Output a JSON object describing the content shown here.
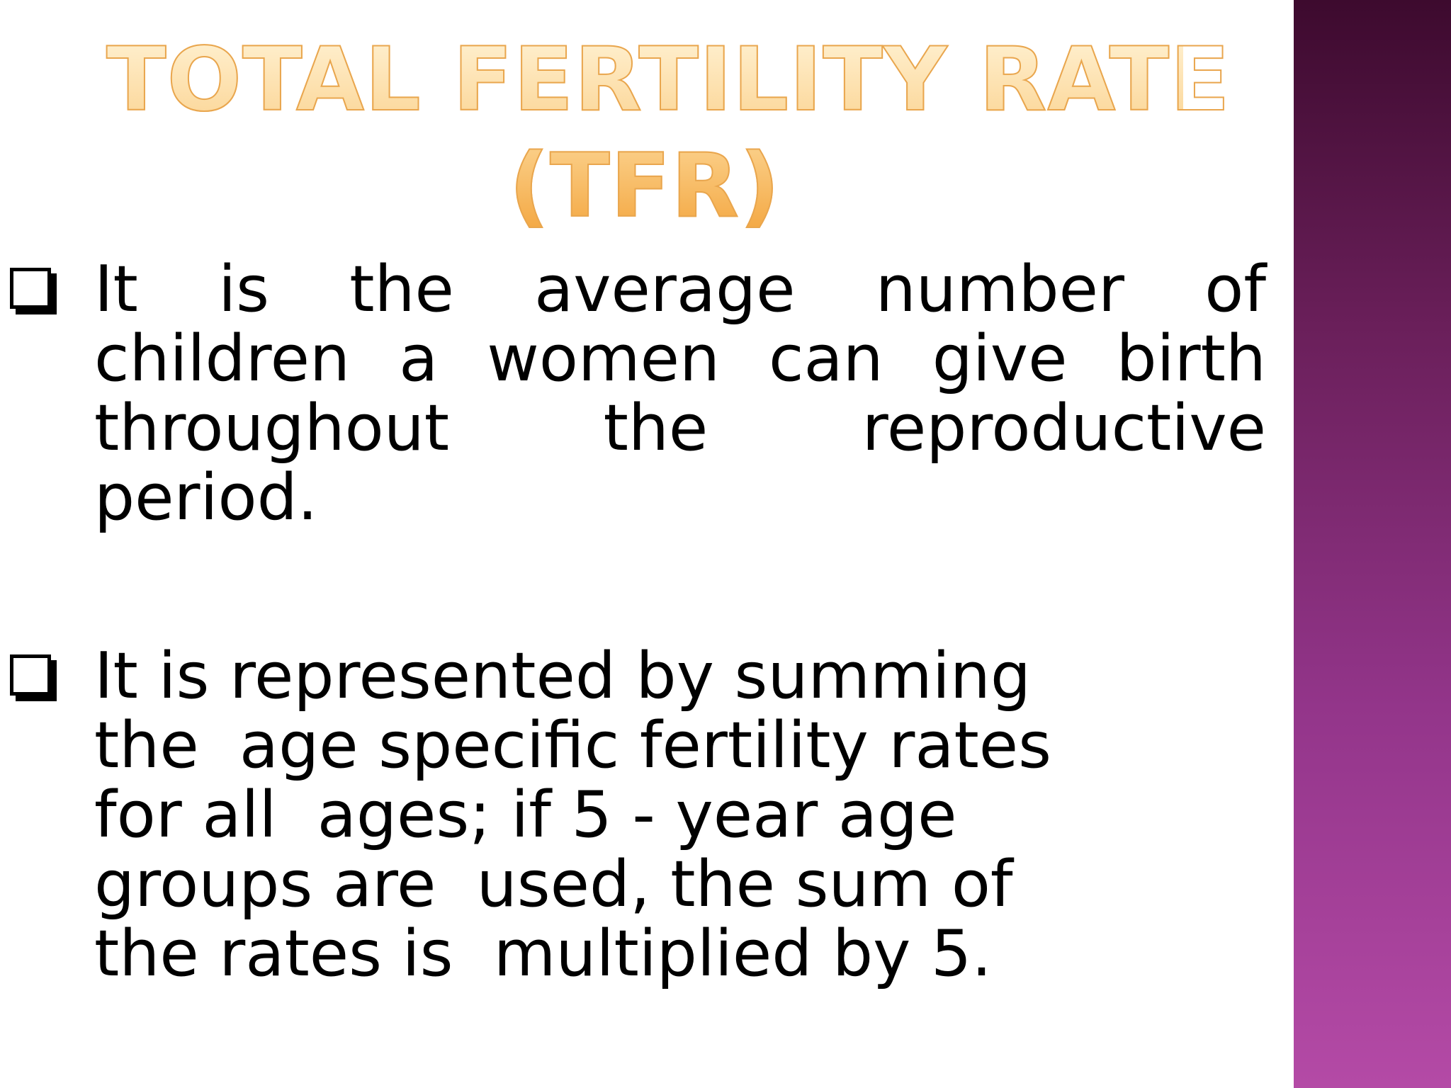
{
  "slide": {
    "title_line1": "TOTAL FERTILITY RATE",
    "title_line2": "(TFR)",
    "bullets": [
      {
        "lines": [
          [
            "It",
            "is",
            "the",
            "average",
            "number",
            "of"
          ],
          [
            "children",
            "a",
            "women",
            "can",
            "give",
            "birth"
          ],
          [
            "throughout",
            "the",
            "reproductive"
          ],
          [
            "period."
          ]
        ]
      },
      {
        "lines": [
          "It is represented by summing",
          "the  age specific fertility rates",
          "for all  ages; if 5 - year age",
          "groups are  used, the sum of",
          "the rates is  multiplied by 5."
        ]
      }
    ]
  },
  "colors": {
    "title_gradient_top": "#fff3d6",
    "title_gradient_bottom": "#f3a43c",
    "title_outline": "#e9a64e",
    "sidebar_top": "#3d0a2e",
    "sidebar_bottom": "#b44aa6",
    "text": "#000000"
  },
  "icons": {
    "bullet": "checkbox-square-icon"
  }
}
